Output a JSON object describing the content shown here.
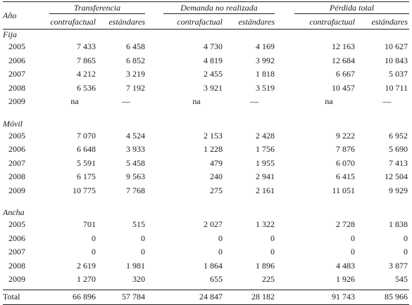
{
  "headers": {
    "anio": "Año",
    "groups": [
      "Transferencia",
      "Demanda no realizada",
      "Pérdida total"
    ],
    "sub": [
      "contrafactual",
      "estándares",
      "contrafactual",
      "estándares",
      "contrafactual",
      "estándares"
    ]
  },
  "sections": [
    {
      "name": "Fija",
      "rows": [
        {
          "year": "2005",
          "values": [
            "7 433",
            "6 458",
            "4 730",
            "4 169",
            "12 163",
            "10 627"
          ]
        },
        {
          "year": "2006",
          "values": [
            "7 865",
            "6 852",
            "4 819",
            "3 992",
            "12 684",
            "10 843"
          ]
        },
        {
          "year": "2007",
          "values": [
            "4 212",
            "3 219",
            "2 455",
            "1 818",
            "6 667",
            "5 037"
          ]
        },
        {
          "year": "2008",
          "values": [
            "6 536",
            "7 192",
            "3 921",
            "3 519",
            "10 457",
            "10 711"
          ]
        },
        {
          "year": "2009",
          "values": [
            "na",
            "—",
            "na",
            "—",
            "na",
            "—"
          ]
        }
      ]
    },
    {
      "name": "Móvil",
      "rows": [
        {
          "year": "2005",
          "values": [
            "7 070",
            "4 524",
            "2 153",
            "2 428",
            "9 222",
            "6 952"
          ]
        },
        {
          "year": "2006",
          "values": [
            "6 648",
            "3 933",
            "1 228",
            "1 756",
            "7 876",
            "5 690"
          ]
        },
        {
          "year": "2007",
          "values": [
            "5 591",
            "5 458",
            "479",
            "1 955",
            "6 070",
            "7 413"
          ]
        },
        {
          "year": "2008",
          "values": [
            "6 175",
            "9 563",
            "240",
            "2 941",
            "6 415",
            "12 504"
          ]
        },
        {
          "year": "2009",
          "values": [
            "10 775",
            "7 768",
            "275",
            "2 161",
            "11 051",
            "9 929"
          ]
        }
      ]
    },
    {
      "name": "Ancha",
      "rows": [
        {
          "year": "2005",
          "values": [
            "701",
            "515",
            "2 027",
            "1 322",
            "2 728",
            "1 838"
          ]
        },
        {
          "year": "2006",
          "values": [
            "0",
            "0",
            "0",
            "0",
            "0",
            "0"
          ]
        },
        {
          "year": "2007",
          "values": [
            "0",
            "0",
            "0",
            "0",
            "0",
            "0"
          ]
        },
        {
          "year": "2008",
          "values": [
            "2 619",
            "1 981",
            "1 864",
            "1 896",
            "4 483",
            "3 877"
          ]
        },
        {
          "year": "2009",
          "values": [
            "1 270",
            "320",
            "655",
            "225",
            "1 926",
            "545"
          ]
        }
      ]
    }
  ],
  "total": {
    "label": "Total",
    "values": [
      "66 896",
      "57 784",
      "24 847",
      "28 182",
      "91 743",
      "85 966"
    ]
  }
}
